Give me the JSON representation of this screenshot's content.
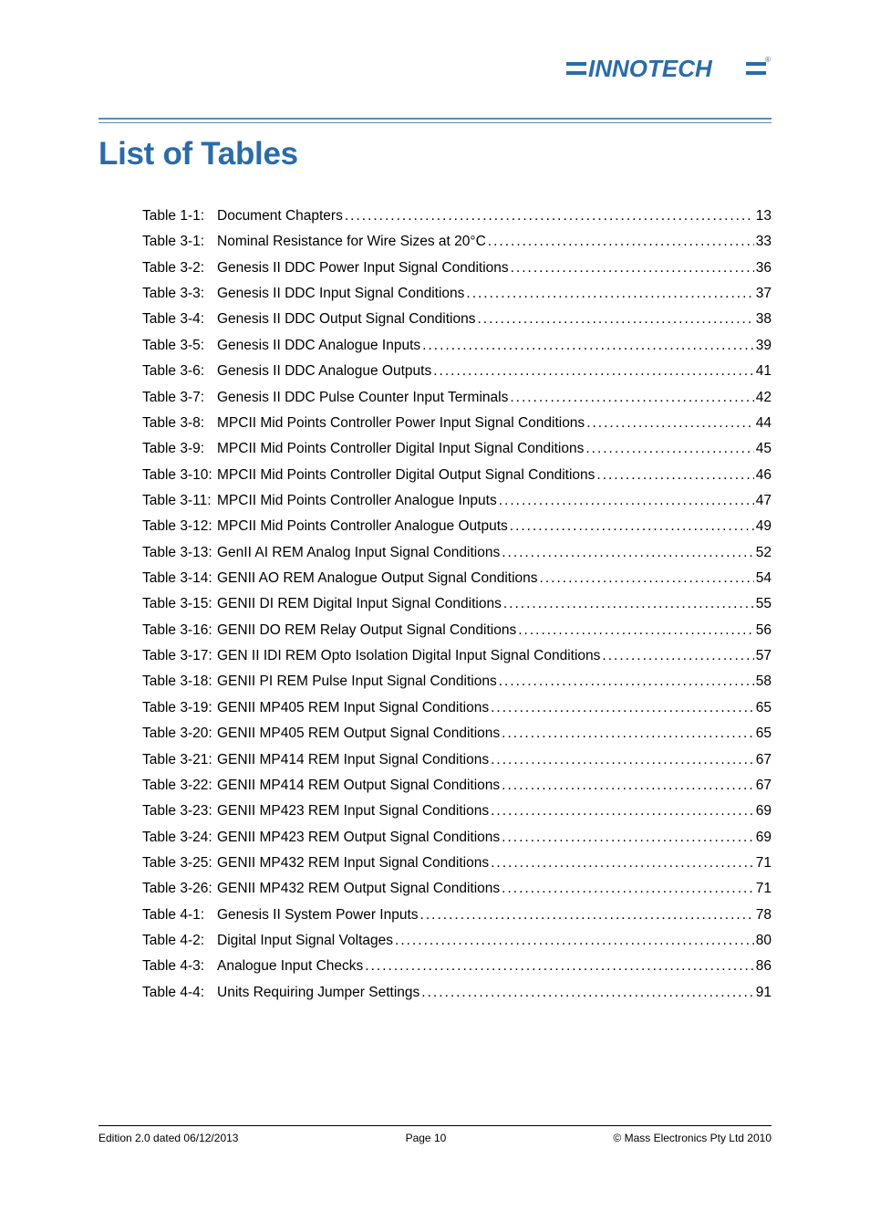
{
  "brand": {
    "name": "INNOTECH",
    "color": "#2a6ca8",
    "rule_color": "#5a8cb5"
  },
  "heading": "List of Tables",
  "toc": [
    {
      "label": "Table 1-1:",
      "title": "Document Chapters",
      "page": "13"
    },
    {
      "label": "Table 3-1:",
      "title": "Nominal Resistance for Wire Sizes at 20°C",
      "page": "33"
    },
    {
      "label": "Table 3-2:",
      "title": "Genesis II DDC Power Input Signal Conditions",
      "page": "36"
    },
    {
      "label": "Table 3-3:",
      "title": "Genesis II DDC Input Signal Conditions",
      "page": "37"
    },
    {
      "label": "Table 3-4:",
      "title": "Genesis II DDC Output Signal Conditions",
      "page": "38"
    },
    {
      "label": "Table 3-5:",
      "title": "Genesis II DDC Analogue Inputs",
      "page": "39"
    },
    {
      "label": "Table 3-6:",
      "title": "Genesis II DDC Analogue Outputs",
      "page": "41"
    },
    {
      "label": "Table 3-7:",
      "title": "Genesis II DDC Pulse Counter Input Terminals",
      "page": "42"
    },
    {
      "label": "Table 3-8:",
      "title": "MPCII Mid Points Controller Power Input Signal Conditions",
      "page": "44"
    },
    {
      "label": "Table 3-9:",
      "title": "MPCII Mid Points Controller Digital Input Signal Conditions",
      "page": "45"
    },
    {
      "label": "Table 3-10:",
      "title": "MPCII Mid Points Controller Digital Output Signal Conditions",
      "page": "46"
    },
    {
      "label": "Table 3-11:",
      "title": "MPCII Mid Points Controller Analogue Inputs",
      "page": "47"
    },
    {
      "label": "Table 3-12:",
      "title": "MPCII Mid Points Controller Analogue Outputs",
      "page": "49"
    },
    {
      "label": "Table 3-13:",
      "title": "GenII AI REM Analog Input Signal Conditions",
      "page": "52"
    },
    {
      "label": "Table 3-14:",
      "title": "GENII AO REM Analogue Output Signal Conditions",
      "page": "54"
    },
    {
      "label": "Table 3-15:",
      "title": "GENII DI REM Digital Input Signal Conditions",
      "page": "55"
    },
    {
      "label": "Table 3-16:",
      "title": "GENII DO REM Relay Output Signal Conditions",
      "page": "56"
    },
    {
      "label": "Table 3-17:",
      "title": "GEN II IDI REM Opto Isolation Digital Input Signal Conditions",
      "page": "57"
    },
    {
      "label": "Table 3-18:",
      "title": "GENII PI REM Pulse Input Signal Conditions",
      "page": "58"
    },
    {
      "label": "Table 3-19:",
      "title": "GENII MP405 REM Input Signal Conditions",
      "page": "65"
    },
    {
      "label": "Table 3-20:",
      "title": "GENII MP405 REM Output Signal Conditions",
      "page": "65"
    },
    {
      "label": "Table 3-21:",
      "title": "GENII MP414 REM Input Signal Conditions",
      "page": "67"
    },
    {
      "label": "Table 3-22:",
      "title": "GENII MP414 REM Output Signal Conditions",
      "page": "67"
    },
    {
      "label": "Table 3-23:",
      "title": "GENII MP423 REM Input Signal Conditions",
      "page": "69"
    },
    {
      "label": "Table 3-24:",
      "title": "GENII MP423 REM Output Signal Conditions",
      "page": "69"
    },
    {
      "label": "Table 3-25:",
      "title": "GENII MP432 REM Input Signal Conditions",
      "page": "71"
    },
    {
      "label": "Table 3-26:",
      "title": "GENII MP432 REM Output Signal Conditions",
      "page": "71"
    },
    {
      "label": "Table 4-1:",
      "title": "Genesis II System Power Inputs",
      "page": "78"
    },
    {
      "label": "Table 4-2:",
      "title": "Digital Input Signal Voltages",
      "page": "80"
    },
    {
      "label": "Table 4-3:",
      "title": "Analogue Input Checks",
      "page": "86"
    },
    {
      "label": "Table 4-4:",
      "title": "Units Requiring Jumper Settings",
      "page": "91"
    }
  ],
  "footer": {
    "left": "Edition 2.0 dated 06/12/2013",
    "center": "Page 10",
    "right": "©  Mass Electronics Pty Ltd  2010"
  }
}
